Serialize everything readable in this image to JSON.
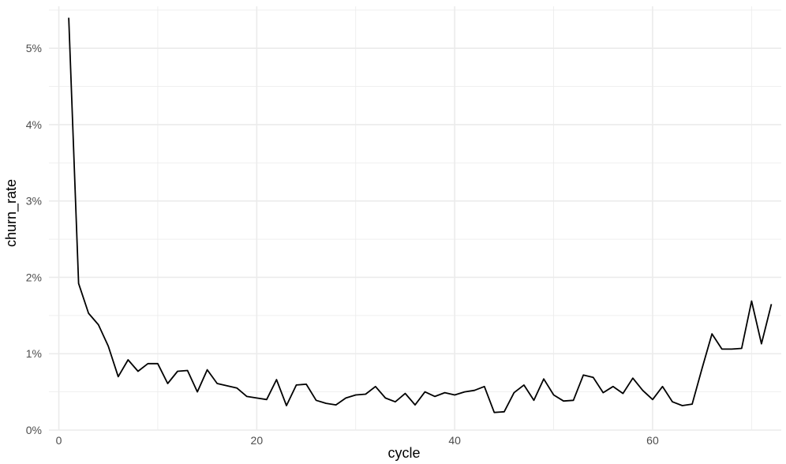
{
  "chart_data": {
    "type": "line",
    "xlabel": "cycle",
    "ylabel": "churn_rate",
    "xlim": [
      -1,
      73
    ],
    "ylim": [
      0,
      5.55
    ],
    "x_ticks": [
      0,
      20,
      40,
      60
    ],
    "x_minor_ticks": [
      10,
      30,
      50,
      70
    ],
    "y_ticks": [
      0,
      1,
      2,
      3,
      4,
      5
    ],
    "y_minor_ticks": [
      0.5,
      1.5,
      2.5,
      3.5,
      4.5,
      5.5
    ],
    "y_tick_labels": [
      "0%",
      "1%",
      "2%",
      "3%",
      "4%",
      "5%"
    ],
    "x_tick_labels": [
      "0",
      "20",
      "40",
      "60"
    ],
    "grid": true,
    "line_color": "#000000",
    "grid_color": "#ebebeb",
    "series": [
      {
        "x": [
          1,
          2,
          3,
          4,
          5,
          6,
          7,
          8,
          9,
          10,
          11,
          12,
          13,
          14,
          15,
          16,
          17,
          18,
          19,
          20,
          21,
          22,
          23,
          24,
          25,
          26,
          27,
          28,
          29,
          30,
          31,
          32,
          33,
          34,
          35,
          36,
          37,
          38,
          39,
          40,
          41,
          42,
          43,
          44,
          45,
          46,
          47,
          48,
          49,
          50,
          51,
          52,
          53,
          54,
          55,
          56,
          57,
          58,
          59,
          60,
          61,
          62,
          63,
          64,
          65,
          66,
          67,
          68,
          69,
          70,
          71,
          72
        ],
        "values": [
          5.4,
          1.92,
          1.53,
          1.38,
          1.1,
          0.7,
          0.92,
          0.77,
          0.87,
          0.87,
          0.61,
          0.77,
          0.78,
          0.5,
          0.79,
          0.61,
          0.58,
          0.55,
          0.44,
          0.42,
          0.4,
          0.66,
          0.32,
          0.59,
          0.6,
          0.39,
          0.35,
          0.33,
          0.42,
          0.46,
          0.47,
          0.57,
          0.42,
          0.37,
          0.48,
          0.33,
          0.5,
          0.44,
          0.49,
          0.46,
          0.5,
          0.52,
          0.57,
          0.23,
          0.24,
          0.49,
          0.59,
          0.39,
          0.67,
          0.46,
          0.38,
          0.39,
          0.72,
          0.69,
          0.49,
          0.57,
          0.48,
          0.68,
          0.52,
          0.4,
          0.57,
          0.37,
          0.32,
          0.34,
          0.81,
          1.26,
          1.06,
          1.06,
          1.07,
          1.69,
          1.13,
          1.65
        ]
      }
    ]
  }
}
